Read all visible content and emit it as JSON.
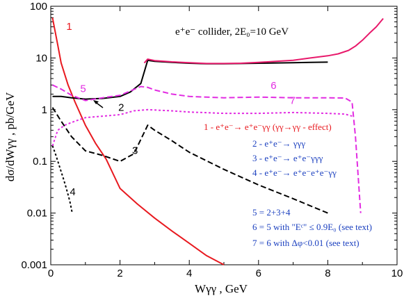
{
  "chart_data": {
    "type": "line",
    "title": "e⁺e⁻ collider, 2E₀=10 GeV",
    "xlabel": "Wγγ , GeV",
    "ylabel": "dσ/dWγγ , pb/GeV",
    "xlim": [
      0,
      10
    ],
    "ylim": [
      0.001,
      100
    ],
    "yscale": "log",
    "x_ticks": [
      "0",
      "2",
      "4",
      "6",
      "8",
      "10"
    ],
    "y_ticks": [
      "0.001",
      "0.01",
      "0.1",
      "1",
      "10",
      "100"
    ],
    "grid": false,
    "series": [
      {
        "name": "1",
        "color": "#e8191f",
        "dash": "solid",
        "x": [
          0.05,
          0.1,
          0.2,
          0.3,
          0.5,
          0.7,
          1.0,
          1.3,
          1.6,
          2.0,
          2.5,
          3.0,
          3.5,
          4.0,
          4.5,
          5.0
        ],
        "y": [
          60,
          40,
          18,
          8,
          3.0,
          1.4,
          0.5,
          0.22,
          0.11,
          0.03,
          0.015,
          0.008,
          0.0045,
          0.0026,
          0.0015,
          0.001
        ]
      },
      {
        "name": "2",
        "color": "#000000",
        "dash": "solid",
        "x": [
          0.05,
          0.3,
          0.6,
          1.0,
          1.5,
          2.0,
          2.3,
          2.6,
          2.8,
          3.0,
          3.5,
          4.0,
          4.5,
          5.0,
          5.5,
          6.0,
          6.5,
          7.0,
          7.5,
          8.0
        ],
        "y": [
          1.8,
          1.8,
          1.7,
          1.6,
          1.65,
          1.8,
          2.2,
          3.2,
          9.0,
          8.6,
          8.2,
          7.9,
          7.7,
          7.7,
          7.8,
          7.9,
          8.0,
          8.1,
          8.2,
          8.3
        ]
      },
      {
        "name": "3",
        "color": "#000000",
        "dash": "8,4",
        "x": [
          0.05,
          0.3,
          0.6,
          1.0,
          1.5,
          2.0,
          2.4,
          2.8,
          3.0,
          3.5,
          4.0,
          5.0,
          6.0,
          7.0,
          8.0
        ],
        "y": [
          1.1,
          0.6,
          0.3,
          0.16,
          0.13,
          0.1,
          0.14,
          0.5,
          0.4,
          0.25,
          0.15,
          0.07,
          0.035,
          0.019,
          0.01
        ]
      },
      {
        "name": "4",
        "color": "#000000",
        "dash": "3,3",
        "x": [
          0.05,
          0.15,
          0.25,
          0.35,
          0.45,
          0.55,
          0.62
        ],
        "y": [
          0.2,
          0.13,
          0.08,
          0.05,
          0.03,
          0.017,
          0.01
        ]
      },
      {
        "name": "5",
        "color": "#e8196b",
        "dash": "solid",
        "x": [
          2.7,
          2.8,
          3.0,
          3.5,
          4.0,
          4.5,
          5.0,
          5.5,
          6.0,
          6.5,
          7.0,
          7.5,
          8.0,
          8.3,
          8.6,
          8.8,
          9.0,
          9.2,
          9.4,
          9.6
        ],
        "y": [
          8.0,
          9.5,
          8.9,
          8.4,
          8.1,
          7.8,
          7.8,
          7.9,
          8.2,
          8.6,
          9.0,
          10,
          11,
          12,
          14,
          17,
          22,
          30,
          40,
          58
        ]
      },
      {
        "name": "6",
        "color": "#e22ce2",
        "dash": "8,4",
        "x": [
          0.05,
          0.3,
          0.6,
          1.0,
          1.5,
          2.0,
          2.3,
          2.6,
          2.8,
          3.0,
          3.5,
          4.0,
          5.0,
          6.0,
          7.0,
          8.0,
          8.5,
          8.7,
          8.8,
          8.95
        ],
        "y": [
          3.0,
          2.5,
          1.9,
          1.5,
          1.7,
          1.9,
          2.3,
          2.8,
          2.7,
          2.4,
          2.0,
          1.8,
          1.7,
          1.75,
          1.7,
          1.7,
          1.68,
          1.4,
          0.3,
          0.01
        ]
      },
      {
        "name": "7",
        "color": "#e22ce2",
        "dash": "3,3",
        "x": [
          0.05,
          0.1,
          0.2,
          0.4,
          0.7,
          1.0,
          1.5,
          2.0,
          2.4,
          2.8,
          3.5,
          4.0,
          5.0,
          6.0,
          7.0,
          8.0,
          8.5,
          8.7
        ],
        "y": [
          0.2,
          0.25,
          0.4,
          0.5,
          0.6,
          0.7,
          0.75,
          0.8,
          0.95,
          1.0,
          0.95,
          0.9,
          0.85,
          0.85,
          0.88,
          0.85,
          0.82,
          0.75
        ]
      }
    ],
    "curve_labels": [
      {
        "text": "1",
        "x": 0.45,
        "y": 35,
        "color": "#e8191f"
      },
      {
        "text": "5",
        "x": 0.85,
        "y": 2.2,
        "color": "#e22ce2"
      },
      {
        "text": "2",
        "x": 1.95,
        "y": 0.95,
        "color": "#000000"
      },
      {
        "text": "6",
        "x": 6.35,
        "y": 2.5,
        "color": "#e22ce2"
      },
      {
        "text": "7",
        "x": 6.9,
        "y": 1.3,
        "color": "#e22ce2"
      },
      {
        "text": "3",
        "x": 2.35,
        "y": 0.14,
        "color": "#000000"
      },
      {
        "text": "4",
        "x": 0.55,
        "y": 0.022,
        "color": "#000000"
      }
    ],
    "annotations": [
      {
        "text": "1 - e⁺e⁻→ e⁺e⁻γγ (γγ→γγ - effect)",
        "color": "#e8191f"
      },
      {
        "text": "2 - e⁺e⁻→ γγγ",
        "color": "#1a3fbf"
      },
      {
        "text": "3 - e⁺e⁻→ e⁺e⁻γγγ",
        "color": "#1a3fbf"
      },
      {
        "text": "4 - e⁺e⁻→ e⁺e⁻e⁺e⁻γγ",
        "color": "#1a3fbf"
      },
      {
        "text": "5 = 2+3+4",
        "color": "#1a3fbf"
      },
      {
        "text": "6 = 5 with \"Eᶜ\" ≤ 0.9E₀ (see text)",
        "color": "#1a3fbf"
      },
      {
        "text": "7 = 6  with Δφ<0.01  (see text)",
        "color": "#1a3fbf"
      }
    ]
  }
}
